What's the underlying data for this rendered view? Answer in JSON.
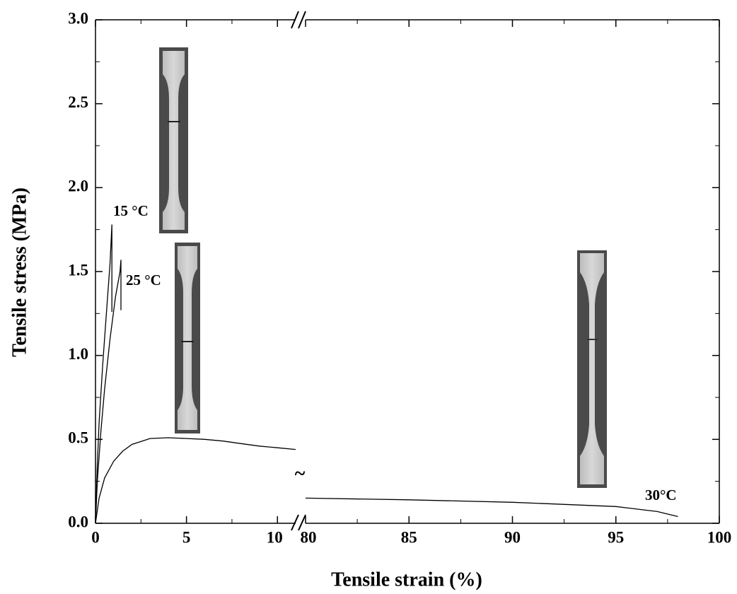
{
  "chart_data": {
    "type": "line",
    "xlabel": "Tensile strain (%)",
    "ylabel": "Tensile stress (MPa)",
    "xlim": [
      0,
      100
    ],
    "x_break": [
      11,
      80
    ],
    "xticks": [
      0,
      5,
      10,
      80,
      85,
      90,
      95,
      100
    ],
    "ylim": [
      0,
      3
    ],
    "yticks": [
      {
        "value": 0,
        "label": "0.0"
      },
      0.5,
      {
        "value": 1,
        "label": "1.0"
      },
      1.5,
      {
        "value": 2,
        "label": "2.0"
      },
      2.5,
      {
        "value": 3,
        "label": "3.0"
      }
    ],
    "series": [
      {
        "name": "15 °C",
        "color": "#000000",
        "x": [
          0,
          0.1,
          0.2,
          0.4,
          0.6,
          0.8,
          0.9,
          0.9
        ],
        "values": [
          0,
          0.35,
          0.6,
          0.95,
          1.25,
          1.55,
          1.78,
          1.26
        ]
      },
      {
        "name": "25 °C",
        "color": "#000000",
        "x": [
          0,
          0.1,
          0.3,
          0.5,
          0.8,
          1.1,
          1.35,
          1.4,
          1.4
        ],
        "values": [
          0,
          0.25,
          0.55,
          0.8,
          1.1,
          1.35,
          1.5,
          1.57,
          1.27
        ]
      },
      {
        "name": "30°C",
        "color": "#000000",
        "x": [
          0,
          0.2,
          0.5,
          1,
          1.5,
          2,
          3,
          4,
          5,
          6,
          7,
          8,
          9,
          10,
          11,
          null,
          80,
          85,
          90,
          95,
          97,
          98
        ],
        "values": [
          0,
          0.15,
          0.27,
          0.37,
          0.43,
          0.47,
          0.505,
          0.51,
          0.505,
          0.5,
          0.49,
          0.475,
          0.46,
          0.45,
          0.44,
          null,
          0.15,
          0.14,
          0.125,
          0.1,
          0.07,
          0.04
        ]
      }
    ],
    "annotations": [
      "~"
    ]
  }
}
